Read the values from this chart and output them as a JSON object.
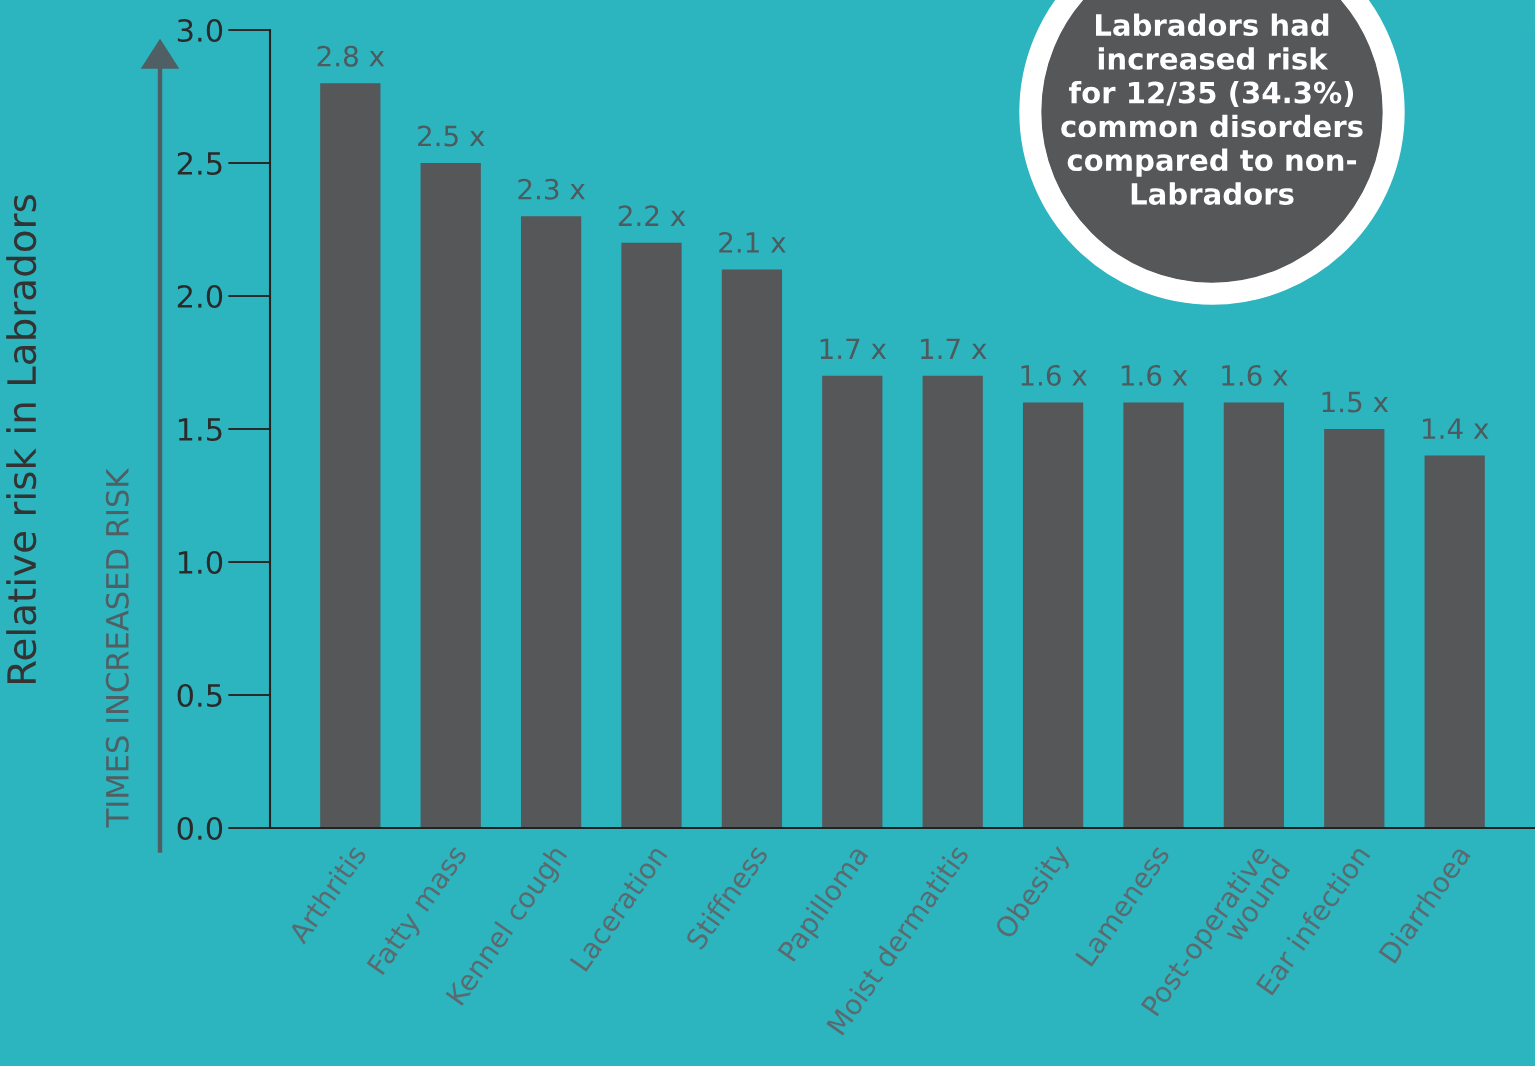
{
  "chart_data": {
    "type": "bar",
    "ylabel": "Relative risk in Labradors",
    "categories": [
      "Arthritis",
      "Fatty mass",
      "Kennel cough",
      "Laceration",
      "Stiffness",
      "Papilloma",
      "Moist dermatitis",
      "Obesity",
      "Lameness",
      "Post-operative\nwound",
      "Ear infection",
      "Diarrhoea"
    ],
    "values": [
      2.8,
      2.5,
      2.3,
      2.2,
      2.1,
      1.7,
      1.7,
      1.6,
      1.6,
      1.6,
      1.5,
      1.4
    ],
    "value_labels": [
      "2.8 x",
      "2.5 x",
      "2.3 x",
      "2.2 x",
      "2.1 x",
      "1.7 x",
      "1.7 x",
      "1.6 x",
      "1.6 x",
      "1.6 x",
      "1.5 x",
      "1.4 x"
    ],
    "color": "#555759",
    "ylim": [
      0,
      3.0
    ],
    "yticks": [
      {
        "value": 0,
        "label": "0.0"
      },
      {
        "value": 0.5,
        "label": "0.5"
      },
      {
        "value": 1.0,
        "label": "1.0"
      },
      {
        "value": 1.5,
        "label": "1.5"
      },
      {
        "value": 2.0,
        "label": "2.0"
      },
      {
        "value": 2.5,
        "label": "2.5"
      },
      {
        "value": 3.0,
        "label": "3.0"
      }
    ],
    "grid": false,
    "legend": false,
    "annotations": [
      "TIMES INCREASED RISK",
      "Labradors had\nincreased risk\nfor 12/35 (34.3%)\ncommon disorders\ncompared to non-\nLabradors"
    ]
  }
}
